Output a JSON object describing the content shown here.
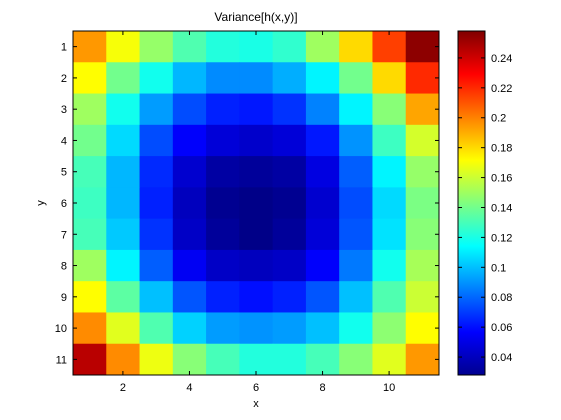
{
  "chart_data": {
    "type": "heatmap",
    "title": "Variance[h(x,y)]",
    "xlabel": "x",
    "ylabel": "y",
    "x": [
      1,
      2,
      3,
      4,
      5,
      6,
      7,
      8,
      9,
      10,
      11
    ],
    "y": [
      1,
      2,
      3,
      4,
      5,
      6,
      7,
      8,
      9,
      10,
      11
    ],
    "x_ticks": [
      2,
      4,
      6,
      8,
      10
    ],
    "y_ticks": [
      1,
      2,
      3,
      4,
      5,
      6,
      7,
      8,
      9,
      10,
      11
    ],
    "y_axis_direction": "reverse",
    "colormap": "jet",
    "clim": [
      0.028,
      0.258
    ],
    "colorbar_ticks": [
      0.04,
      0.06,
      0.08,
      0.1,
      0.12,
      0.14,
      0.16,
      0.18,
      0.2,
      0.22,
      0.24
    ],
    "colorbar_tick_labels": [
      "0.04",
      "0.06",
      "0.08",
      "0.1",
      "0.12",
      "0.14",
      "0.16",
      "0.18",
      "0.2",
      "0.22",
      "0.24"
    ],
    "values": [
      [
        0.195,
        0.17,
        0.148,
        0.132,
        0.122,
        0.12,
        0.125,
        0.15,
        0.18,
        0.215,
        0.255
      ],
      [
        0.172,
        0.14,
        0.118,
        0.098,
        0.088,
        0.088,
        0.096,
        0.112,
        0.14,
        0.18,
        0.22
      ],
      [
        0.15,
        0.118,
        0.092,
        0.074,
        0.064,
        0.062,
        0.068,
        0.086,
        0.112,
        0.145,
        0.192
      ],
      [
        0.14,
        0.106,
        0.074,
        0.056,
        0.048,
        0.045,
        0.048,
        0.062,
        0.09,
        0.128,
        0.162
      ],
      [
        0.13,
        0.098,
        0.066,
        0.046,
        0.036,
        0.034,
        0.036,
        0.05,
        0.078,
        0.112,
        0.148
      ],
      [
        0.128,
        0.098,
        0.064,
        0.042,
        0.032,
        0.03,
        0.032,
        0.046,
        0.074,
        0.106,
        0.142
      ],
      [
        0.13,
        0.102,
        0.068,
        0.044,
        0.034,
        0.03,
        0.034,
        0.048,
        0.076,
        0.108,
        0.145
      ],
      [
        0.15,
        0.112,
        0.078,
        0.054,
        0.044,
        0.042,
        0.044,
        0.056,
        0.084,
        0.118,
        0.152
      ],
      [
        0.172,
        0.135,
        0.1,
        0.076,
        0.064,
        0.06,
        0.064,
        0.076,
        0.1,
        0.132,
        0.16
      ],
      [
        0.198,
        0.165,
        0.132,
        0.104,
        0.092,
        0.09,
        0.092,
        0.1,
        0.118,
        0.146,
        0.172
      ],
      [
        0.245,
        0.198,
        0.168,
        0.145,
        0.13,
        0.122,
        0.122,
        0.13,
        0.145,
        0.165,
        0.195
      ]
    ]
  }
}
